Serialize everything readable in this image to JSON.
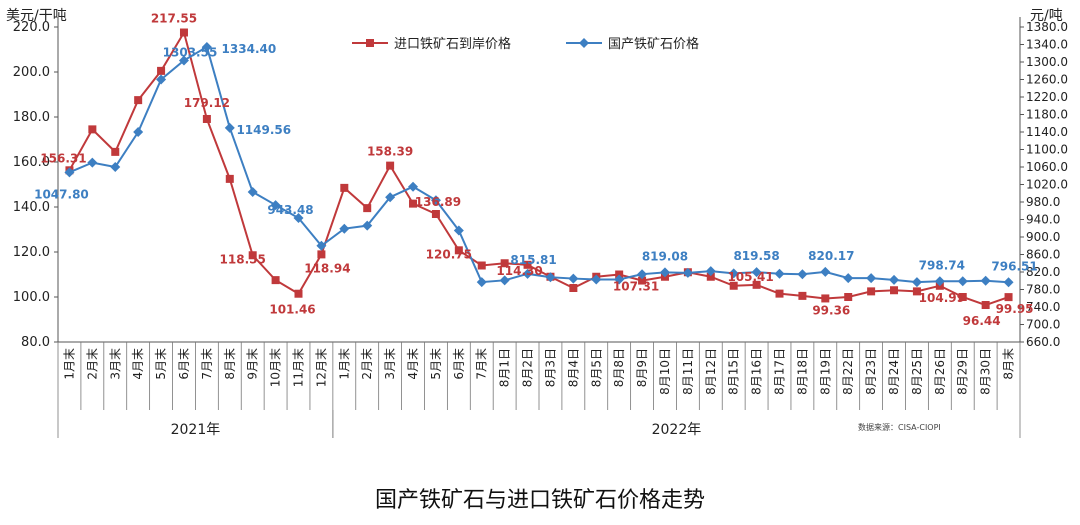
{
  "caption": "国产铁矿石与进口铁矿石价格走势",
  "chart_data": {
    "type": "line",
    "title": "国产铁矿石与进口铁矿石价格走势",
    "ylabel_left": "美元/干吨",
    "ylabel_right": "元/吨",
    "ylim_left": [
      80,
      220
    ],
    "ylim_right": [
      660,
      1380
    ],
    "left_ticks": [
      "80.0",
      "100.0",
      "120.0",
      "140.0",
      "160.0",
      "180.0",
      "200.0",
      "220.0"
    ],
    "right_ticks": [
      "660.0",
      "700.0",
      "740.0",
      "780.0",
      "820.0",
      "860.0",
      "900.0",
      "940.0",
      "980.0",
      "1020.0",
      "1060.0",
      "1100.0",
      "1140.0",
      "1180.0",
      "1220.0",
      "1260.0",
      "1300.0",
      "1340.0",
      "1380.0"
    ],
    "categories": [
      "1月末",
      "2月末",
      "3月末",
      "4月末",
      "5月末",
      "6月末",
      "7月末",
      "8月末",
      "9月末",
      "10月末",
      "11月末",
      "12月末",
      "1月末",
      "2月末",
      "3月末",
      "4月末",
      "5月末",
      "6月末",
      "7月末",
      "8月1日",
      "8月2日",
      "8月3日",
      "8月4日",
      "8月5日",
      "8月8日",
      "8月9日",
      "8月10日",
      "8月11日",
      "8月12日",
      "8月15日",
      "8月16日",
      "8月17日",
      "8月18日",
      "8月19日",
      "8月22日",
      "8月23日",
      "8月24日",
      "8月25日",
      "8月26日",
      "8月29日",
      "8月30日",
      "8月末"
    ],
    "groups": [
      {
        "label": "2021年",
        "start": 0,
        "end": 11
      },
      {
        "label": "2022年",
        "start": 12,
        "end": 41
      }
    ],
    "series": [
      {
        "name": "进口铁矿石到岸价格",
        "color": "#c0393b",
        "axis": "left",
        "marker": "square",
        "values": [
          156.31,
          174.5,
          164.5,
          187.5,
          200.5,
          217.55,
          179.12,
          152.5,
          118.55,
          107.5,
          101.46,
          118.94,
          148.5,
          139.5,
          158.39,
          141.5,
          136.89,
          120.75,
          114.0,
          115.0,
          114.3,
          109.0,
          104.0,
          109.0,
          110.0,
          107.31,
          109.0,
          111.0,
          109.0,
          105.0,
          105.41,
          101.5,
          100.5,
          99.36,
          100.0,
          102.5,
          103.0,
          102.5,
          104.99,
          100.0,
          96.44,
          99.95
        ]
      },
      {
        "name": "国产铁矿石价格",
        "color": "#3d7fc2",
        "axis": "right",
        "marker": "diamond",
        "values": [
          1047.8,
          1070,
          1060,
          1140,
          1260,
          1303.55,
          1334.4,
          1149.56,
          1003,
          973,
          943.48,
          880,
          919,
          926,
          991,
          1015,
          984,
          915,
          797,
          801,
          815.81,
          808,
          805,
          803,
          803,
          815,
          819.08,
          818,
          822,
          817,
          819.58,
          816,
          815,
          820.17,
          806,
          806,
          802,
          797,
          798.74,
          799,
          800,
          796.51
        ]
      }
    ],
    "data_labels": {
      "red": [
        {
          "i": 0,
          "text": "156.31"
        },
        {
          "i": 5,
          "text": "217.55"
        },
        {
          "i": 6,
          "text": "179.12"
        },
        {
          "i": 8,
          "text": "118.55"
        },
        {
          "i": 10,
          "text": "101.46"
        },
        {
          "i": 11,
          "text": "118.94"
        },
        {
          "i": 14,
          "text": "158.39"
        },
        {
          "i": 16,
          "text": "136.89"
        },
        {
          "i": 17,
          "text": "120.75"
        },
        {
          "i": 20,
          "text": "114.30"
        },
        {
          "i": 25,
          "text": "107.31"
        },
        {
          "i": 30,
          "text": "105.41"
        },
        {
          "i": 33,
          "text": "99.36"
        },
        {
          "i": 38,
          "text": "104.99"
        },
        {
          "i": 40,
          "text": "96.44"
        },
        {
          "i": 41,
          "text": "99.95"
        }
      ],
      "blue": [
        {
          "i": 0,
          "text": "1047.80"
        },
        {
          "i": 5,
          "text": "1303.55"
        },
        {
          "i": 6,
          "text": "1334.40"
        },
        {
          "i": 7,
          "text": "1149.56"
        },
        {
          "i": 10,
          "text": "943.48"
        },
        {
          "i": 20,
          "text": "815.81"
        },
        {
          "i": 26,
          "text": "819.08"
        },
        {
          "i": 30,
          "text": "819.58"
        },
        {
          "i": 33,
          "text": "820.17"
        },
        {
          "i": 38,
          "text": "798.74"
        },
        {
          "i": 41,
          "text": "796.51"
        }
      ]
    },
    "source_note": "数据来源：CISA-CIOPI",
    "legend_position": "top-center"
  }
}
